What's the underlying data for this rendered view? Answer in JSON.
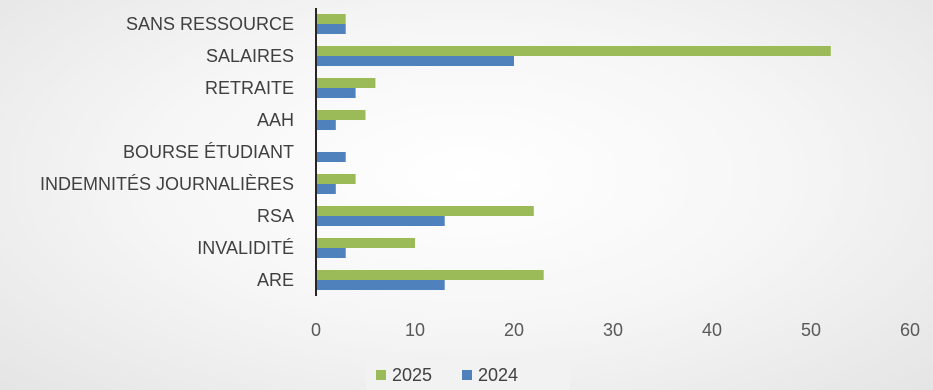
{
  "chart_data": {
    "type": "bar",
    "orientation": "horizontal",
    "categories": [
      "SANS RESSOURCE",
      "SALAIRES",
      "RETRAITE",
      "AAH",
      "BOURSE ÉTUDIANT",
      "INDEMNITÉS JOURNALIÈRES",
      "RSA",
      "INVALIDITÉ",
      "ARE"
    ],
    "series": [
      {
        "name": "2025",
        "color": "#9bbb59",
        "values": [
          3,
          52,
          6,
          5,
          0,
          4,
          22,
          10,
          23
        ]
      },
      {
        "name": "2024",
        "color": "#4f81bd",
        "values": [
          3,
          20,
          4,
          2,
          3,
          2,
          13,
          3,
          13
        ]
      }
    ],
    "xlim": [
      0,
      60
    ],
    "xticks": [
      0,
      10,
      20,
      30,
      40,
      50,
      60
    ],
    "grid": false,
    "legend_position": "bottom",
    "axis_color": "#262626"
  }
}
